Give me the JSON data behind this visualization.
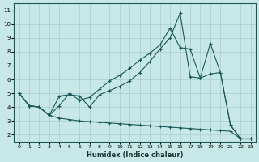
{
  "xlabel": "Humidex (Indice chaleur)",
  "xlim": [
    -0.5,
    23.5
  ],
  "ylim": [
    1.5,
    11.5
  ],
  "xticks": [
    0,
    1,
    2,
    3,
    4,
    5,
    6,
    7,
    8,
    9,
    10,
    11,
    12,
    13,
    14,
    15,
    16,
    17,
    18,
    19,
    20,
    21,
    22,
    23
  ],
  "yticks": [
    2,
    3,
    4,
    5,
    6,
    7,
    8,
    9,
    10,
    11
  ],
  "background_color": "#c8e8e8",
  "grid_color": "#a8cccc",
  "line_color": "#1a5858",
  "line1_x": [
    0,
    1,
    2,
    3,
    4,
    5,
    6,
    7,
    8,
    9,
    10,
    11,
    12,
    13,
    14,
    15,
    16,
    17,
    18,
    19,
    20,
    21,
    22,
    23
  ],
  "line1_y": [
    5.0,
    4.1,
    4.0,
    3.4,
    4.8,
    4.9,
    4.8,
    4.0,
    4.9,
    5.2,
    5.5,
    5.9,
    6.5,
    7.3,
    8.2,
    9.0,
    10.8,
    6.2,
    6.1,
    6.4,
    6.5,
    2.7,
    1.7,
    1.7
  ],
  "line2_x": [
    0,
    1,
    2,
    3,
    4,
    5,
    6,
    7,
    8,
    9,
    10,
    11,
    12,
    13,
    14,
    15,
    16,
    17,
    18,
    19,
    20,
    21,
    22,
    23
  ],
  "line2_y": [
    5.0,
    4.1,
    4.0,
    3.4,
    4.1,
    5.0,
    4.5,
    4.7,
    5.3,
    5.9,
    6.3,
    6.8,
    7.4,
    7.9,
    8.5,
    9.7,
    8.3,
    8.2,
    6.1,
    8.6,
    6.5,
    2.7,
    1.7,
    1.7
  ],
  "line3_x": [
    0,
    1,
    2,
    3,
    4,
    5,
    6,
    7,
    8,
    9,
    10,
    11,
    12,
    13,
    14,
    15,
    16,
    17,
    18,
    19,
    20,
    21,
    22,
    23
  ],
  "line3_y": [
    5.0,
    4.1,
    4.0,
    3.4,
    3.2,
    3.1,
    3.0,
    2.95,
    2.9,
    2.85,
    2.8,
    2.75,
    2.7,
    2.65,
    2.6,
    2.55,
    2.5,
    2.45,
    2.4,
    2.35,
    2.3,
    2.25,
    1.7,
    1.7
  ]
}
